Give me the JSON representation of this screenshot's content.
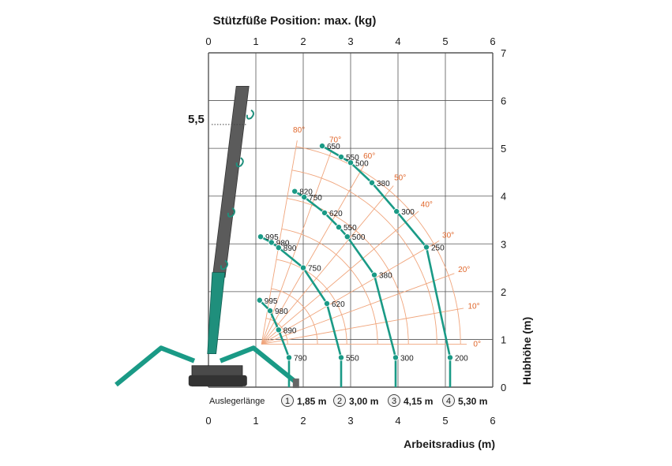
{
  "chart_data": {
    "type": "scatter",
    "title": "Stützfüße Position: max. (kg)",
    "xlabel": "Arbeitsradius (m)",
    "ylabel": "Hubhöhe (m)",
    "xlim": [
      0,
      6
    ],
    "ylim": [
      0,
      7
    ],
    "x_ticks": [
      "0",
      "1",
      "2",
      "3",
      "4",
      "5",
      "6"
    ],
    "y_ticks": [
      "0",
      "1",
      "2",
      "3",
      "4",
      "5",
      "6",
      "7"
    ],
    "grid": true,
    "max_height_label": "5,5",
    "max_height_value": 5.5,
    "boom_length_caption": "Auslegerlänge",
    "boom_sections": [
      {
        "num": "1",
        "length": "1,85 m",
        "x": 1.7
      },
      {
        "num": "2",
        "length": "3,00 m",
        "x": 2.8
      },
      {
        "num": "3",
        "length": "4,15 m",
        "x": 3.95
      },
      {
        "num": "4",
        "length": "5,30 m",
        "x": 5.1
      }
    ],
    "angles": [
      {
        "label": "80°",
        "deg": 80
      },
      {
        "label": "70°",
        "deg": 70
      },
      {
        "label": "60°",
        "deg": 60
      },
      {
        "label": "50°",
        "deg": 50
      },
      {
        "label": "40°",
        "deg": 40
      },
      {
        "label": "30°",
        "deg": 30
      },
      {
        "label": "20°",
        "deg": 20
      },
      {
        "label": "10°",
        "deg": 10
      },
      {
        "label": "0°",
        "deg": 0
      }
    ],
    "series": [
      {
        "name": "1,85 m",
        "points": [
          {
            "x": 1.08,
            "y": 1.82,
            "label": "995"
          },
          {
            "x": 1.3,
            "y": 1.6,
            "label": "980"
          },
          {
            "x": 1.48,
            "y": 1.2,
            "label": "890"
          },
          {
            "x": 1.7,
            "y": 0.62,
            "label": "790"
          }
        ]
      },
      {
        "name": "3,00 m",
        "points": [
          {
            "x": 1.1,
            "y": 3.15,
            "label": "995"
          },
          {
            "x": 1.33,
            "y": 3.03,
            "label": "980"
          },
          {
            "x": 1.48,
            "y": 2.92,
            "label": "890"
          },
          {
            "x": 2.0,
            "y": 2.5,
            "label": "750"
          },
          {
            "x": 2.5,
            "y": 1.75,
            "label": "620"
          },
          {
            "x": 2.8,
            "y": 0.62,
            "label": "550"
          }
        ]
      },
      {
        "name": "4,15 m",
        "points": [
          {
            "x": 1.82,
            "y": 4.1,
            "label": "820"
          },
          {
            "x": 2.02,
            "y": 3.98,
            "label": "750"
          },
          {
            "x": 2.45,
            "y": 3.65,
            "label": "620"
          },
          {
            "x": 2.75,
            "y": 3.35,
            "label": "550"
          },
          {
            "x": 2.93,
            "y": 3.15,
            "label": "500"
          },
          {
            "x": 3.5,
            "y": 2.35,
            "label": "380"
          },
          {
            "x": 3.95,
            "y": 0.62,
            "label": "300"
          }
        ]
      },
      {
        "name": "5,30 m",
        "points": [
          {
            "x": 2.4,
            "y": 5.05,
            "label": "650"
          },
          {
            "x": 2.8,
            "y": 4.82,
            "label": "550"
          },
          {
            "x": 3.0,
            "y": 4.7,
            "label": "500"
          },
          {
            "x": 3.45,
            "y": 4.28,
            "label": "380"
          },
          {
            "x": 3.97,
            "y": 3.68,
            "label": "300"
          },
          {
            "x": 4.6,
            "y": 2.93,
            "label": "250"
          },
          {
            "x": 5.1,
            "y": 0.62,
            "label": "200"
          }
        ]
      }
    ]
  }
}
